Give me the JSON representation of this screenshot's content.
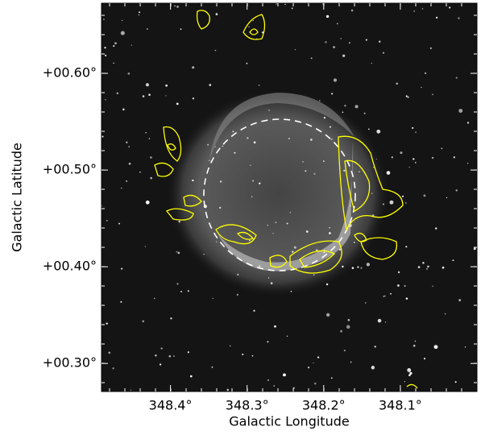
{
  "chart_data": {
    "type": "image",
    "xlabel": "Galactic Longitude",
    "ylabel": "Galactic Latitude",
    "xlim": [
      348.49,
      348.0
    ],
    "ylim": [
      0.271,
      0.6725
    ],
    "xticks": [
      {
        "value": 348.4,
        "label": "348.4°"
      },
      {
        "value": 348.3,
        "label": "348.3°"
      },
      {
        "value": 348.2,
        "label": "348.2°"
      },
      {
        "value": 348.1,
        "label": "348.1°"
      }
    ],
    "yticks": [
      {
        "value": 0.3,
        "label": "+00.30°"
      },
      {
        "value": 0.4,
        "label": "+00.40°"
      },
      {
        "value": 0.5,
        "label": "+00.50°"
      },
      {
        "value": 0.6,
        "label": "+00.60°"
      }
    ]
  }
}
